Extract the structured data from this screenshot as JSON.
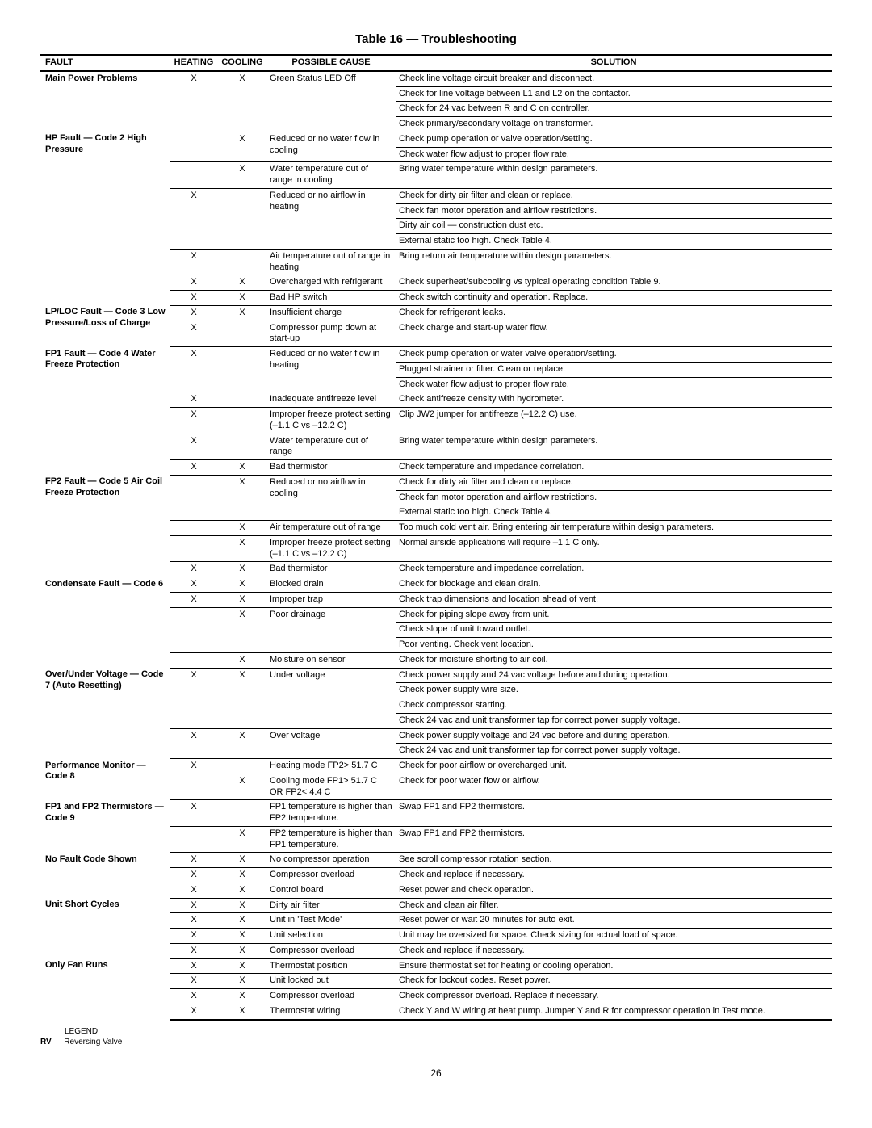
{
  "title": "Table 16 — Troubleshooting",
  "headers": {
    "fault": "FAULT",
    "heating": "HEATING",
    "cooling": "COOLING",
    "cause": "POSSIBLE CAUSE",
    "solution": "SOLUTION"
  },
  "legend": {
    "label": "LEGEND",
    "rv": "RV — ",
    "rvdef": "Reversing Valve"
  },
  "page": "26",
  "rows": [
    {
      "fault": "Main Power Problems",
      "fault_span": 4,
      "heating": "X",
      "cooling": "X",
      "cause": "Green Status LED Off",
      "cause_span": 4,
      "solution": "Check line voltage circuit breaker and disconnect."
    },
    {
      "solution": "Check for line voltage between L1 and L2 on the contactor."
    },
    {
      "solution": "Check for 24 vac between R and C on controller."
    },
    {
      "solution": "Check primary/secondary voltage on transformer."
    },
    {
      "fault": "HP Fault — Code 2\nHigh Pressure",
      "fault_span": 9,
      "heating": "",
      "cooling": "X",
      "cause": "Reduced or no water flow in cooling",
      "cause_span": 2,
      "solution": "Check pump operation or valve operation/setting."
    },
    {
      "solution": "Check water flow adjust to proper flow rate."
    },
    {
      "heating": "",
      "cooling": "X",
      "cause": "Water temperature out of range in cooling",
      "solution": "Bring water temperature within design parameters."
    },
    {
      "heating": "X",
      "cooling": "",
      "cause": "Reduced or no airflow in heating",
      "cause_span": 4,
      "solution": "Check for dirty air filter and clean or replace."
    },
    {
      "solution": "Check fan motor operation and airflow restrictions."
    },
    {
      "solution": "Dirty air coil — construction dust etc."
    },
    {
      "solution": "External static too high. Check Table 4."
    },
    {
      "heating": "X",
      "cooling": "",
      "cause": "Air temperature out of range in heating",
      "solution": "Bring return air temperature within design parameters."
    },
    {
      "heating": "X",
      "cooling": "X",
      "cause": "Overcharged with refrigerant",
      "solution": "Check superheat/subcooling vs typical operating condition Table 9."
    },
    {
      "heating": "X",
      "cooling": "X",
      "cause": "Bad HP switch",
      "solution": "Check switch continuity and operation. Replace."
    },
    {
      "fault": "LP/LOC Fault — Code 3\nLow Pressure/Loss of Charge",
      "fault_span": 2,
      "heating": "X",
      "cooling": "X",
      "cause": "Insufficient charge",
      "solution": "Check for refrigerant leaks."
    },
    {
      "heating": "X",
      "cooling": "",
      "cause": "Compressor pump down at start-up",
      "solution": "Check charge and start-up water flow."
    },
    {
      "fault": "FP1 Fault — Code 4\nWater Freeze Protection",
      "fault_span": 7,
      "heating": "X",
      "cooling": "",
      "cause": "Reduced or no water flow in heating",
      "cause_span": 3,
      "solution": "Check pump operation or water valve operation/setting."
    },
    {
      "solution": "Plugged strainer or filter. Clean or replace."
    },
    {
      "solution": "Check water flow adjust to proper flow rate."
    },
    {
      "heating": "X",
      "cooling": "",
      "cause": "Inadequate antifreeze level",
      "solution": "Check antifreeze density with hydrometer."
    },
    {
      "heating": "X",
      "cooling": "",
      "cause": "Improper freeze protect setting (–1.1 C vs –12.2 C)",
      "solution": "Clip JW2 jumper for antifreeze (–12.2 C) use."
    },
    {
      "heating": "X",
      "cooling": "",
      "cause": "Water temperature out of range",
      "solution": "Bring water temperature within design parameters."
    },
    {
      "heating": "X",
      "cooling": "X",
      "cause": "Bad thermistor",
      "solution": "Check temperature and impedance correlation."
    },
    {
      "fault": "FP2 Fault — Code 5\nAir Coil Freeze Protection",
      "fault_span": 6,
      "heating": "",
      "cooling": "X",
      "cause": "Reduced or no airflow in cooling",
      "cause_span": 3,
      "solution": "Check for dirty air filter and clean or replace."
    },
    {
      "solution": "Check fan motor operation and airflow restrictions."
    },
    {
      "solution": "External static too high. Check Table 4."
    },
    {
      "heating": "",
      "cooling": "X",
      "cause": "Air temperature out of range",
      "solution": "Too much cold vent air. Bring entering air temperature within design parameters."
    },
    {
      "heating": "",
      "cooling": "X",
      "cause": "Improper freeze protect setting (–1.1 C vs –12.2 C)",
      "solution": "Normal airside applications will require –1.1 C only."
    },
    {
      "heating": "X",
      "cooling": "X",
      "cause": "Bad thermistor",
      "solution": "Check temperature and impedance correlation."
    },
    {
      "fault": "Condensate Fault — Code 6",
      "fault_span": 6,
      "heating": "X",
      "cooling": "X",
      "cause": "Blocked drain",
      "solution": "Check for blockage and clean drain."
    },
    {
      "heating": "X",
      "cooling": "X",
      "cause": "Improper trap",
      "solution": "Check trap dimensions and location ahead of vent."
    },
    {
      "heating": "",
      "cooling": "X",
      "cause": "Poor drainage",
      "cause_span": 3,
      "solution": "Check for piping slope away from unit."
    },
    {
      "solution": "Check slope of unit toward outlet."
    },
    {
      "solution": "Poor venting. Check vent location."
    },
    {
      "heating": "",
      "cooling": "X",
      "cause": "Moisture on sensor",
      "solution": "Check for moisture shorting to air coil."
    },
    {
      "fault": "Over/Under Voltage — Code 7\n(Auto Resetting)",
      "fault_span": 6,
      "heating": "X",
      "cooling": "X",
      "cause": "Under voltage",
      "cause_span": 4,
      "solution": "Check power supply and 24 vac voltage before and during operation."
    },
    {
      "solution": "Check power supply wire size."
    },
    {
      "solution": "Check compressor starting."
    },
    {
      "solution": "Check 24 vac and unit transformer tap for correct power supply voltage."
    },
    {
      "heating": "X",
      "cooling": "X",
      "cause": "Over voltage",
      "cause_span": 2,
      "solution": "Check power supply voltage and 24 vac before and during operation."
    },
    {
      "solution": "Check 24 vac and unit transformer tap for correct power supply voltage."
    },
    {
      "fault": "Performance Monitor — Code 8",
      "fault_span": 2,
      "heating": "X",
      "cooling": "",
      "cause": "Heating mode FP2> 51.7 C",
      "solution": "Check for poor airflow or overcharged unit."
    },
    {
      "heating": "",
      "cooling": "X",
      "cause": "Cooling mode FP1> 51.7 C OR FP2< 4.4 C",
      "solution": "Check for poor water flow or airflow."
    },
    {
      "fault": "FP1 and FP2 Thermistors — Code 9",
      "fault_span": 2,
      "heating": "X",
      "cooling": "",
      "cause": "FP1 temperature is higher than FP2 temperature.",
      "solution": "Swap FP1 and FP2 thermistors."
    },
    {
      "heating": "",
      "cooling": "X",
      "cause": "FP2 temperature is higher than FP1 temperature.",
      "solution": "Swap FP1 and FP2 thermistors."
    },
    {
      "fault": "No Fault Code Shown",
      "fault_span": 3,
      "heating": "X",
      "cooling": "X",
      "cause": "No compressor operation",
      "solution": "See scroll compressor rotation section."
    },
    {
      "heating": "X",
      "cooling": "X",
      "cause": "Compressor overload",
      "solution": "Check and replace if necessary."
    },
    {
      "heating": "X",
      "cooling": "X",
      "cause": "Control board",
      "solution": "Reset power and check operation."
    },
    {
      "fault": "Unit Short Cycles",
      "fault_span": 4,
      "heating": "X",
      "cooling": "X",
      "cause": "Dirty air filter",
      "solution": "Check and clean air filter."
    },
    {
      "heating": "X",
      "cooling": "X",
      "cause": "Unit in 'Test Mode'",
      "solution": "Reset power or wait 20 minutes for auto exit."
    },
    {
      "heating": "X",
      "cooling": "X",
      "cause": "Unit selection",
      "solution": "Unit may be oversized for space. Check sizing for actual load of space."
    },
    {
      "heating": "X",
      "cooling": "X",
      "cause": "Compressor overload",
      "solution": "Check and replace if necessary."
    },
    {
      "fault": "Only Fan Runs",
      "fault_span": 4,
      "heating": "X",
      "cooling": "X",
      "cause": "Thermostat position",
      "solution": "Ensure thermostat set for heating or cooling operation."
    },
    {
      "heating": "X",
      "cooling": "X",
      "cause": "Unit locked out",
      "solution": "Check for lockout codes. Reset power."
    },
    {
      "heating": "X",
      "cooling": "X",
      "cause": "Compressor overload",
      "solution": "Check compressor overload. Replace if necessary."
    },
    {
      "heating": "X",
      "cooling": "X",
      "cause": "Thermostat wiring",
      "solution": "Check Y and W wiring at heat pump. Jumper Y and R for compressor operation in Test mode.",
      "last": true
    }
  ]
}
